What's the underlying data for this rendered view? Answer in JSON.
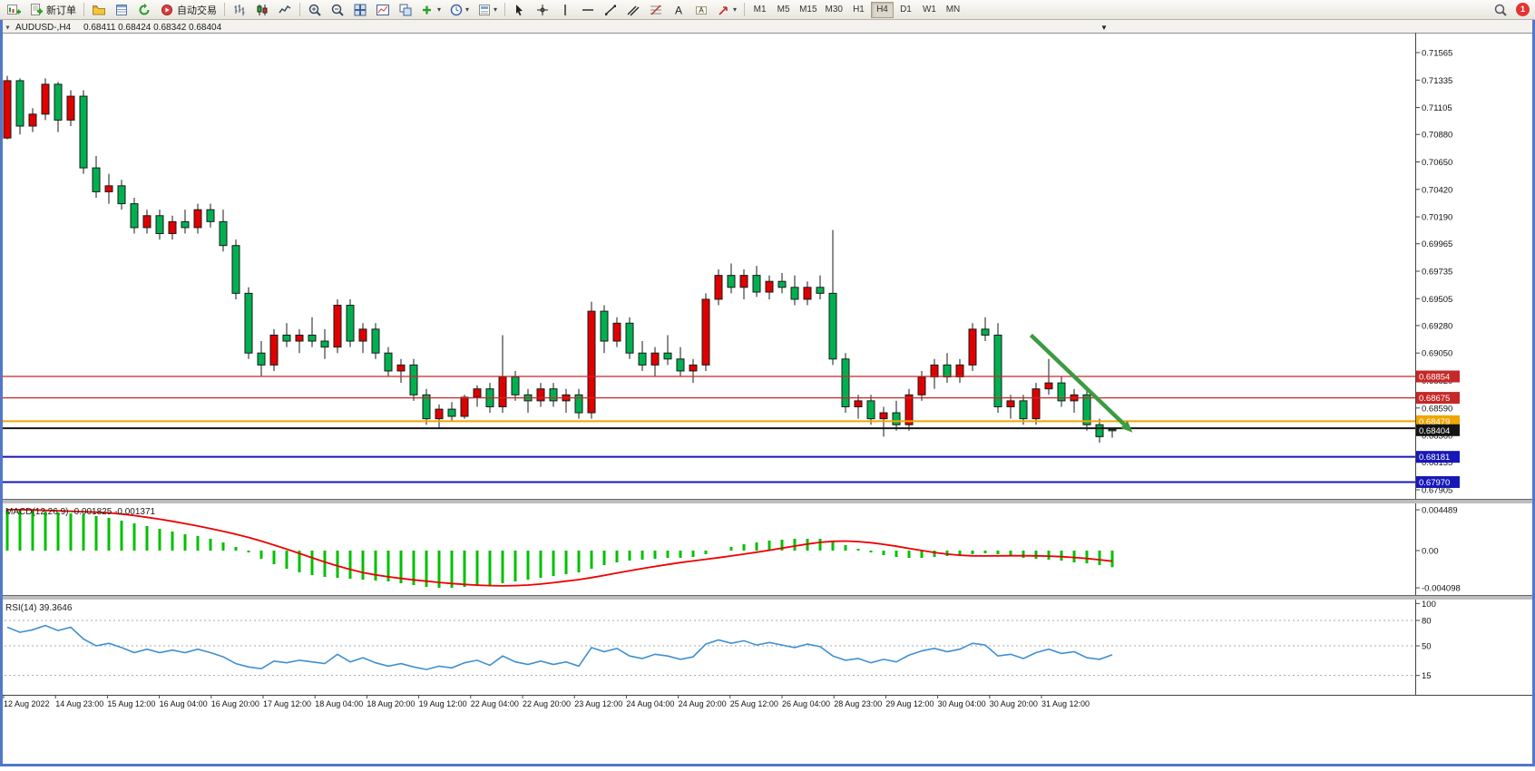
{
  "toolbar": {
    "new_order_label": "新订单",
    "autotrading_label": "自动交易",
    "timeframes": [
      "M1",
      "M5",
      "M15",
      "M30",
      "H1",
      "H4",
      "D1",
      "W1",
      "MN"
    ],
    "active_timeframe": "H4",
    "notification_badge": "1"
  },
  "icons": {
    "dropdown_arrow": "▾",
    "caption_collapse": "▼",
    "scroll_marker": "▼"
  },
  "chart_header": {
    "symbol": "AUDUSD-,H4",
    "ohlc": "0.68411 0.68424 0.68342 0.68404"
  },
  "colors": {
    "up_candle": "#e00000",
    "down_candle": "#00b050",
    "candle_outline": "#1a1a1a",
    "macd_histogram": "#00c000",
    "macd_signal": "#ee0000",
    "rsi_line": "#3f8fd2",
    "annotation_arrow": "#3c9b40"
  },
  "chart_data": {
    "type": "candlestick",
    "symbol": "AUDUSD-",
    "timeframe": "H4",
    "price_axis_ticks": [
      "0.71565",
      "0.71335",
      "0.71105",
      "0.70880",
      "0.70650",
      "0.70420",
      "0.70190",
      "0.69965",
      "0.69735",
      "0.69505",
      "0.69280",
      "0.69050",
      "0.68820",
      "0.68590",
      "0.68360",
      "0.68135",
      "0.67905"
    ],
    "time_axis_labels": [
      "12 Aug 2022",
      "14 Aug 23:00",
      "15 Aug 12:00",
      "16 Aug 04:00",
      "16 Aug 20:00",
      "17 Aug 12:00",
      "18 Aug 04:00",
      "18 Aug 20:00",
      "19 Aug 12:00",
      "22 Aug 04:00",
      "22 Aug 20:00",
      "23 Aug 12:00",
      "24 Aug 04:00",
      "24 Aug 20:00",
      "25 Aug 12:00",
      "26 Aug 04:00",
      "28 Aug 23:00",
      "29 Aug 12:00",
      "30 Aug 04:00",
      "30 Aug 20:00",
      "31 Aug 12:00"
    ],
    "levels": [
      {
        "label": "0.68854",
        "price": 0.68854,
        "color": "#c62828",
        "line_width": 1.2
      },
      {
        "label": "0.68675",
        "price": 0.68675,
        "color": "#c62828",
        "line_width": 1.2
      },
      {
        "label": "0.68479",
        "price": 0.68479,
        "color": "#f0a500",
        "line_width": 2
      },
      {
        "label": "0.68404",
        "price": 0.6842,
        "badge_price": 0.68404,
        "color": "#141414",
        "line_width": 2
      },
      {
        "label": "0.68181",
        "price": 0.68181,
        "color": "#1818b8",
        "line_width": 2
      },
      {
        "label": "0.67970",
        "price": 0.6797,
        "color": "#1818b8",
        "line_width": 2
      }
    ],
    "annotation_arrow": {
      "from_bar": 80.6,
      "from_price": 0.692,
      "to_bar": 88.6,
      "to_price": 0.68385
    },
    "candles_ohlc": [
      [
        0.7085,
        0.7137,
        0.7084,
        0.7133
      ],
      [
        0.7133,
        0.7135,
        0.7088,
        0.7095
      ],
      [
        0.7095,
        0.711,
        0.709,
        0.7105
      ],
      [
        0.7105,
        0.7135,
        0.71,
        0.713
      ],
      [
        0.713,
        0.7132,
        0.709,
        0.71
      ],
      [
        0.71,
        0.7125,
        0.7095,
        0.712
      ],
      [
        0.712,
        0.7125,
        0.7055,
        0.706
      ],
      [
        0.706,
        0.707,
        0.7035,
        0.704
      ],
      [
        0.704,
        0.7055,
        0.703,
        0.7045
      ],
      [
        0.7045,
        0.705,
        0.7025,
        0.703
      ],
      [
        0.703,
        0.7035,
        0.7005,
        0.701
      ],
      [
        0.701,
        0.7025,
        0.7005,
        0.702
      ],
      [
        0.702,
        0.7025,
        0.7,
        0.7005
      ],
      [
        0.7005,
        0.702,
        0.7,
        0.7015
      ],
      [
        0.7015,
        0.7025,
        0.7005,
        0.701
      ],
      [
        0.701,
        0.703,
        0.7005,
        0.7025
      ],
      [
        0.7025,
        0.703,
        0.701,
        0.7015
      ],
      [
        0.7015,
        0.7025,
        0.699,
        0.6995
      ],
      [
        0.6995,
        0.7,
        0.695,
        0.6955
      ],
      [
        0.6955,
        0.696,
        0.69,
        0.6905
      ],
      [
        0.6905,
        0.6915,
        0.6885,
        0.6895
      ],
      [
        0.6895,
        0.6925,
        0.689,
        0.692
      ],
      [
        0.692,
        0.693,
        0.691,
        0.6915
      ],
      [
        0.6915,
        0.6925,
        0.6905,
        0.692
      ],
      [
        0.692,
        0.6935,
        0.691,
        0.6915
      ],
      [
        0.6915,
        0.6925,
        0.69,
        0.691
      ],
      [
        0.691,
        0.695,
        0.6905,
        0.6945
      ],
      [
        0.6945,
        0.695,
        0.691,
        0.6915
      ],
      [
        0.6915,
        0.693,
        0.6905,
        0.6925
      ],
      [
        0.6925,
        0.693,
        0.69,
        0.6905
      ],
      [
        0.6905,
        0.691,
        0.6885,
        0.689
      ],
      [
        0.689,
        0.69,
        0.688,
        0.6895
      ],
      [
        0.6895,
        0.69,
        0.6865,
        0.687
      ],
      [
        0.687,
        0.6875,
        0.6845,
        0.685
      ],
      [
        0.685,
        0.6862,
        0.6842,
        0.6858
      ],
      [
        0.6858,
        0.6864,
        0.6848,
        0.6852
      ],
      [
        0.6852,
        0.687,
        0.685,
        0.6868
      ],
      [
        0.6868,
        0.6878,
        0.686,
        0.6875
      ],
      [
        0.6875,
        0.688,
        0.6855,
        0.686
      ],
      [
        0.686,
        0.692,
        0.6855,
        0.6885
      ],
      [
        0.6885,
        0.689,
        0.6865,
        0.687
      ],
      [
        0.687,
        0.6875,
        0.6855,
        0.6865
      ],
      [
        0.6865,
        0.688,
        0.686,
        0.6875
      ],
      [
        0.6875,
        0.688,
        0.686,
        0.6865
      ],
      [
        0.6865,
        0.6875,
        0.6855,
        0.687
      ],
      [
        0.687,
        0.6875,
        0.685,
        0.6855
      ],
      [
        0.6855,
        0.6948,
        0.685,
        0.694
      ],
      [
        0.694,
        0.6945,
        0.6905,
        0.6915
      ],
      [
        0.6915,
        0.6935,
        0.691,
        0.693
      ],
      [
        0.693,
        0.6935,
        0.69,
        0.6905
      ],
      [
        0.6905,
        0.6915,
        0.689,
        0.6895
      ],
      [
        0.6895,
        0.691,
        0.6885,
        0.6905
      ],
      [
        0.6905,
        0.692,
        0.6895,
        0.69
      ],
      [
        0.69,
        0.691,
        0.6885,
        0.689
      ],
      [
        0.689,
        0.69,
        0.688,
        0.6895
      ],
      [
        0.6895,
        0.6955,
        0.689,
        0.695
      ],
      [
        0.695,
        0.6975,
        0.6945,
        0.697
      ],
      [
        0.697,
        0.698,
        0.6955,
        0.696
      ],
      [
        0.696,
        0.6975,
        0.695,
        0.697
      ],
      [
        0.697,
        0.6978,
        0.6952,
        0.6956
      ],
      [
        0.6956,
        0.697,
        0.695,
        0.6965
      ],
      [
        0.6965,
        0.6972,
        0.6955,
        0.696
      ],
      [
        0.696,
        0.697,
        0.6945,
        0.695
      ],
      [
        0.695,
        0.6965,
        0.6945,
        0.696
      ],
      [
        0.696,
        0.697,
        0.695,
        0.6955
      ],
      [
        0.6955,
        0.7008,
        0.6895,
        0.69
      ],
      [
        0.69,
        0.6905,
        0.6855,
        0.686
      ],
      [
        0.686,
        0.687,
        0.685,
        0.6865
      ],
      [
        0.6865,
        0.687,
        0.6845,
        0.685
      ],
      [
        0.685,
        0.686,
        0.6835,
        0.6855
      ],
      [
        0.6855,
        0.6865,
        0.684,
        0.6845
      ],
      [
        0.6845,
        0.6875,
        0.684,
        0.687
      ],
      [
        0.687,
        0.689,
        0.6865,
        0.6885
      ],
      [
        0.6885,
        0.69,
        0.6875,
        0.6895
      ],
      [
        0.6895,
        0.6905,
        0.688,
        0.6885
      ],
      [
        0.6885,
        0.69,
        0.688,
        0.6895
      ],
      [
        0.6895,
        0.693,
        0.689,
        0.6925
      ],
      [
        0.6925,
        0.6935,
        0.6915,
        0.692
      ],
      [
        0.692,
        0.693,
        0.6855,
        0.686
      ],
      [
        0.686,
        0.687,
        0.685,
        0.6865
      ],
      [
        0.6865,
        0.687,
        0.6845,
        0.685
      ],
      [
        0.685,
        0.688,
        0.6845,
        0.6875
      ],
      [
        0.6875,
        0.69,
        0.687,
        0.688
      ],
      [
        0.688,
        0.6885,
        0.686,
        0.6865
      ],
      [
        0.6865,
        0.6875,
        0.6855,
        0.687
      ],
      [
        0.687,
        0.6875,
        0.684,
        0.6845
      ],
      [
        0.6845,
        0.685,
        0.683,
        0.6835
      ],
      [
        0.68411,
        0.68424,
        0.68342,
        0.68404
      ]
    ],
    "macd": {
      "label": "MACD(12,26,9)",
      "main_value": "-0.001825",
      "signal_value": "-0.001371",
      "axis_ticks": [
        "0.004489",
        "0.00",
        "-0.004098"
      ],
      "histogram": [
        0.0045,
        0.0045,
        0.0044,
        0.0043,
        0.0042,
        0.0041,
        0.004,
        0.0038,
        0.0036,
        0.0033,
        0.003,
        0.0027,
        0.0024,
        0.0021,
        0.0018,
        0.0016,
        0.0013,
        0.0009,
        0.0004,
        -0.0002,
        -0.0009,
        -0.0015,
        -0.002,
        -0.0024,
        -0.0027,
        -0.0029,
        -0.003,
        -0.0031,
        -0.0032,
        -0.0033,
        -0.0034,
        -0.0036,
        -0.0038,
        -0.004,
        -0.0041,
        -0.0041,
        -0.004,
        -0.0039,
        -0.0038,
        -0.0036,
        -0.0034,
        -0.0032,
        -0.003,
        -0.0028,
        -0.0026,
        -0.0024,
        -0.002,
        -0.0016,
        -0.0013,
        -0.0011,
        -0.001,
        -0.0009,
        -0.0008,
        -0.0008,
        -0.0007,
        -0.0004,
        0.0,
        0.0004,
        0.0007,
        0.0009,
        0.0011,
        0.0012,
        0.0013,
        0.0013,
        0.0013,
        0.001,
        0.0006,
        0.0002,
        -0.0002,
        -0.0005,
        -0.0007,
        -0.0008,
        -0.0008,
        -0.0007,
        -0.0006,
        -0.0005,
        -0.0004,
        -0.0003,
        -0.0004,
        -0.0006,
        -0.0008,
        -0.0009,
        -0.001,
        -0.0011,
        -0.0013,
        -0.0014,
        -0.0016,
        -0.001825
      ],
      "signal_period": 9
    },
    "rsi": {
      "label": "RSI(14)",
      "value": "39.3646",
      "axis_ticks": [
        "100",
        "80",
        "50",
        "15"
      ],
      "levels": [
        80,
        50,
        15
      ],
      "values": [
        72,
        66,
        69,
        74,
        68,
        72,
        58,
        50,
        53,
        48,
        42,
        46,
        42,
        45,
        42,
        46,
        42,
        37,
        29,
        25,
        23,
        32,
        30,
        33,
        31,
        29,
        40,
        31,
        36,
        30,
        26,
        29,
        25,
        22,
        26,
        24,
        30,
        33,
        27,
        38,
        31,
        28,
        32,
        28,
        31,
        26,
        48,
        43,
        47,
        38,
        35,
        40,
        38,
        34,
        37,
        52,
        57,
        53,
        56,
        51,
        54,
        51,
        48,
        52,
        49,
        38,
        33,
        35,
        30,
        34,
        31,
        39,
        44,
        47,
        43,
        46,
        53,
        51,
        38,
        40,
        35,
        42,
        46,
        41,
        43,
        36,
        34,
        39.3646
      ]
    }
  }
}
